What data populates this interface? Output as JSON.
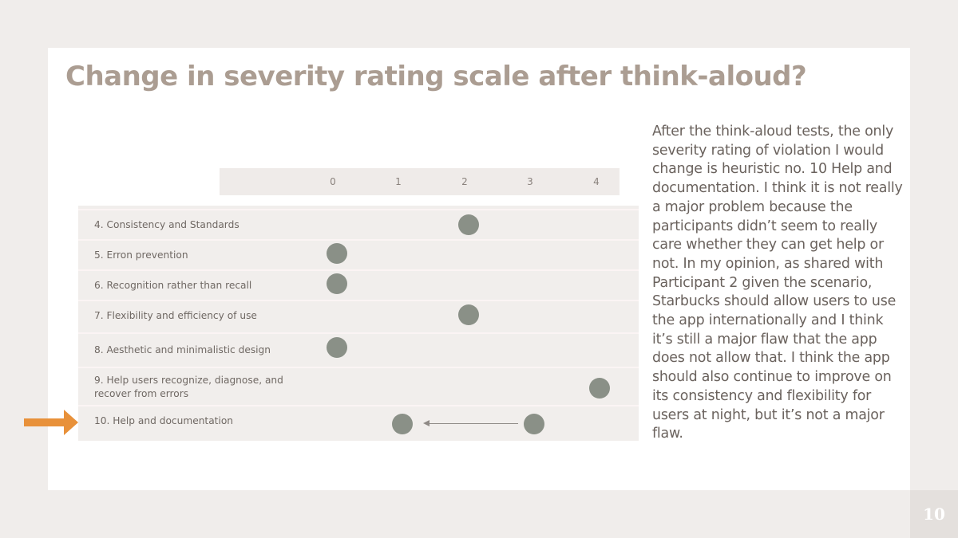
{
  "slide": {
    "title": "Change in severity rating scale after think-aloud?",
    "body": "After the think-aloud tests, the only severity rating of violation  I would change is heuristic no. 10 Help and documentation. I think it is not really a major problem because the participants didn’t seem to really care whether they can get help or not. In my opinion, as shared with Participant 2 given the scenario, Starbucks should allow users to use the app internationally and I think it’s still a major flaw that the app does not allow that. I think the app should also continue to improve on its consistency and flexibility for users at night, but it’s not a major flaw.",
    "page_number": "10"
  },
  "colors": {
    "title": "#ab9d92",
    "text": "#6a625d",
    "dot": "#8a9087",
    "arrow": "#e8913a",
    "background": "#f0edeb"
  },
  "icons": [
    "right-arrow-icon"
  ],
  "chart_data": {
    "type": "scatter",
    "x_ticks": [
      "0",
      "1",
      "2",
      "3",
      "4"
    ],
    "xlim": [
      0,
      4
    ],
    "rows": [
      {
        "label": "4. Consistency and Standards",
        "value": 2
      },
      {
        "label": "5. Erron prevention",
        "value": 0
      },
      {
        "label": "6. Recognition rather than recall",
        "value": 0
      },
      {
        "label": "7. Flexibility and efficiency of use",
        "value": 2
      },
      {
        "label": "8. Aesthetic and minimalistic design",
        "value": 0
      },
      {
        "label": "9. Help users recognize, diagnose, and recover from errors",
        "value": 4
      },
      {
        "label": "10. Help and documentation",
        "value": 1,
        "previous_value": 3
      }
    ]
  }
}
